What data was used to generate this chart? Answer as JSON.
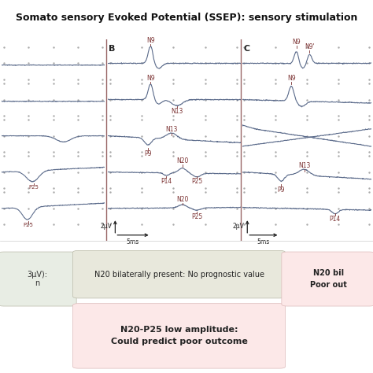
{
  "title": "Somato sensory Evoked Potential (SSEP): sensory stimulation",
  "title_fontsize": 9.0,
  "background_color": "#ffffff",
  "waveform_color": "#5a6a8a",
  "annotation_color": "#7a3030",
  "dot_color": "#aaaaaa",
  "bottom_box1_text": "N20 bilaterally present: No prognostic value",
  "bottom_box1_color": "#e8e8dc",
  "bottom_box2_text": "N20-P25 low amplitude:\nCould predict poor outcome",
  "bottom_box2_color": "#fce8e8",
  "bottom_box3_text": "N20 bil\nPoor out",
  "bottom_box3_color": "#fce8e8",
  "left_box_text": "3μV):\nn",
  "left_box_color": "#e8ede4",
  "panel_B_label": "B",
  "panel_C_label": "C",
  "scale_label_amp": "2μV",
  "scale_label_time": "5ms",
  "divider_color": "#996666",
  "divider_lw": 1.0
}
